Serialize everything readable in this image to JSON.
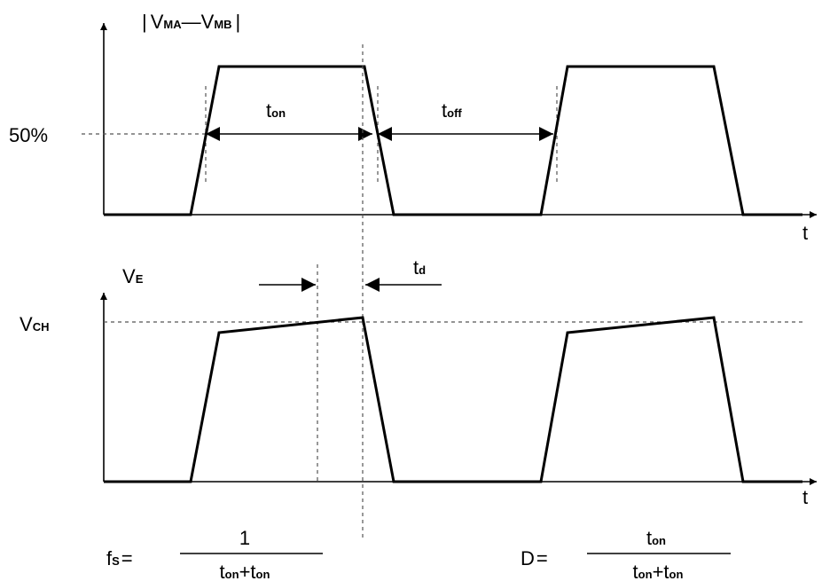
{
  "top_plot": {
    "ylabel": {
      "open": "|",
      "v1": "V",
      "v1_sub": "MA",
      "minus": "—",
      "v2": "V",
      "v2_sub": "MB",
      "close": "|"
    },
    "level_label": "50%",
    "t_on": {
      "base": "t",
      "sub": "on"
    },
    "t_off": {
      "base": "t",
      "sub": "off"
    },
    "xlabel": "t"
  },
  "bottom_plot": {
    "ylabel": {
      "base": "V",
      "sub": "E"
    },
    "level_label": {
      "base": "V",
      "sub": "CH"
    },
    "t_d": {
      "base": "t",
      "sub": "d"
    },
    "xlabel": "t"
  },
  "formula_fs": {
    "lhs_base": "f",
    "lhs_sub": "S",
    "eq": "=",
    "numerator": "1",
    "den_t1": "t",
    "den_t1_sub": "on",
    "plus": "+",
    "den_t2": "t",
    "den_t2_sub": "on"
  },
  "formula_d": {
    "lhs": "D",
    "eq": "=",
    "num_t": "t",
    "num_t_sub": "on",
    "den_t1": "t",
    "den_t1_sub": "on",
    "plus": "+",
    "den_t2": "t",
    "den_t2_sub": "on"
  }
}
